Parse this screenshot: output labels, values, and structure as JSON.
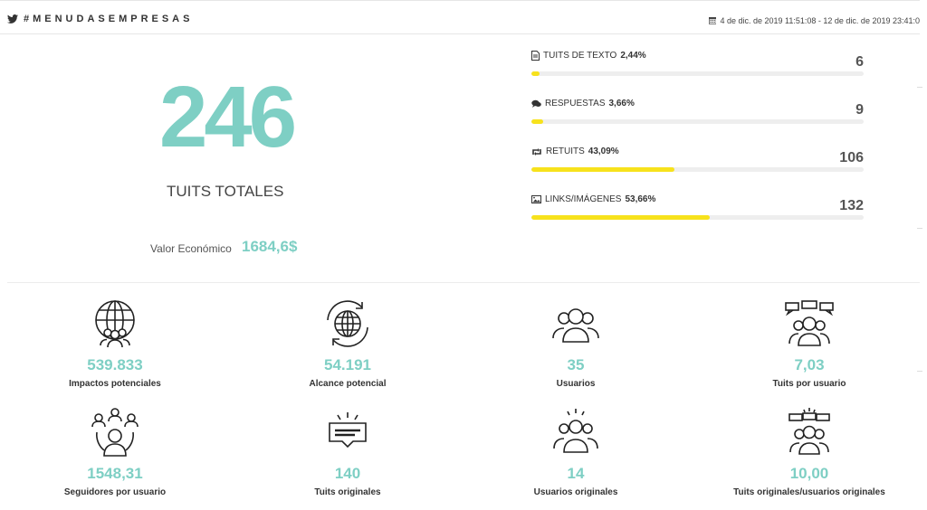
{
  "header": {
    "hashtag": "#MENUDASEMPRESAS",
    "date_range": "4 de dic. de 2019 11:51:08 - 12 de dic. de 2019 23:41:0"
  },
  "summary": {
    "total": "246",
    "total_label": "TUITS TOTALES",
    "valor_label": "Valor Económico",
    "valor_value": "1684,6$"
  },
  "stats": [
    {
      "label": "TUITS DE TEXTO",
      "percent": "2,44%",
      "count": "6",
      "fraction": 0.0244,
      "icon": "document-icon"
    },
    {
      "label": "RESPUESTAS",
      "percent": "3,66%",
      "count": "9",
      "fraction": 0.0366,
      "icon": "speech-bubbles-icon"
    },
    {
      "label": "RETUITS",
      "percent": "43,09%",
      "count": "106",
      "fraction": 0.4309,
      "icon": "retweet-icon"
    },
    {
      "label": "LINKS/IMÁGENES",
      "percent": "53,66%",
      "count": "132",
      "fraction": 0.5366,
      "icon": "image-icon"
    }
  ],
  "metrics": [
    {
      "value": "539.833",
      "label": "Impactos potenciales",
      "icon": "globe-people-icon"
    },
    {
      "value": "54.191",
      "label": "Alcance potencial",
      "icon": "globe-refresh-icon"
    },
    {
      "value": "35",
      "label": "Usuarios",
      "icon": "users-group-icon"
    },
    {
      "value": "7,03",
      "label": "Tuits por usuario",
      "icon": "users-chat-icon"
    },
    {
      "value": "1548,31",
      "label": "Seguidores por usuario",
      "icon": "user-network-icon"
    },
    {
      "value": "140",
      "label": "Tuits originales",
      "icon": "message-box-icon"
    },
    {
      "value": "14",
      "label": "Usuarios originales",
      "icon": "users-spark-icon"
    },
    {
      "value": "10,00",
      "label": "Tuits originales/usuarios originales",
      "icon": "users-chat-spark-icon"
    }
  ],
  "colors": {
    "accent": "#7ecfc4",
    "bar": "#f7e21c",
    "track": "#eeeeee"
  }
}
